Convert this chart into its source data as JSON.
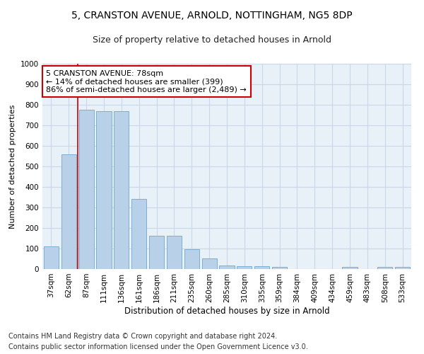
{
  "title1": "5, CRANSTON AVENUE, ARNOLD, NOTTINGHAM, NG5 8DP",
  "title2": "Size of property relative to detached houses in Arnold",
  "xlabel": "Distribution of detached houses by size in Arnold",
  "ylabel": "Number of detached properties",
  "categories": [
    "37sqm",
    "62sqm",
    "87sqm",
    "111sqm",
    "136sqm",
    "161sqm",
    "186sqm",
    "211sqm",
    "235sqm",
    "260sqm",
    "285sqm",
    "310sqm",
    "335sqm",
    "359sqm",
    "384sqm",
    "409sqm",
    "434sqm",
    "459sqm",
    "483sqm",
    "508sqm",
    "533sqm"
  ],
  "values": [
    112,
    557,
    775,
    770,
    768,
    343,
    163,
    163,
    97,
    52,
    18,
    14,
    14,
    10,
    0,
    0,
    0,
    10,
    0,
    10,
    10
  ],
  "bar_color": "#b8d0e8",
  "bar_edge_color": "#7aafd4",
  "red_line_color": "#cc0000",
  "red_line_x": 1.5,
  "annotation_text": "5 CRANSTON AVENUE: 78sqm\n← 14% of detached houses are smaller (399)\n86% of semi-detached houses are larger (2,489) →",
  "annotation_box_color": "#ffffff",
  "annotation_box_edge": "#cc0000",
  "footer1": "Contains HM Land Registry data © Crown copyright and database right 2024.",
  "footer2": "Contains public sector information licensed under the Open Government Licence v3.0.",
  "ylim": [
    0,
    1000
  ],
  "yticks": [
    0,
    100,
    200,
    300,
    400,
    500,
    600,
    700,
    800,
    900,
    1000
  ],
  "grid_color": "#c8d8e8",
  "bg_color": "#e8f0f8",
  "title1_fontsize": 10,
  "title2_fontsize": 9,
  "xlabel_fontsize": 8.5,
  "ylabel_fontsize": 8,
  "tick_fontsize": 7.5,
  "annotation_fontsize": 8,
  "footer_fontsize": 7
}
